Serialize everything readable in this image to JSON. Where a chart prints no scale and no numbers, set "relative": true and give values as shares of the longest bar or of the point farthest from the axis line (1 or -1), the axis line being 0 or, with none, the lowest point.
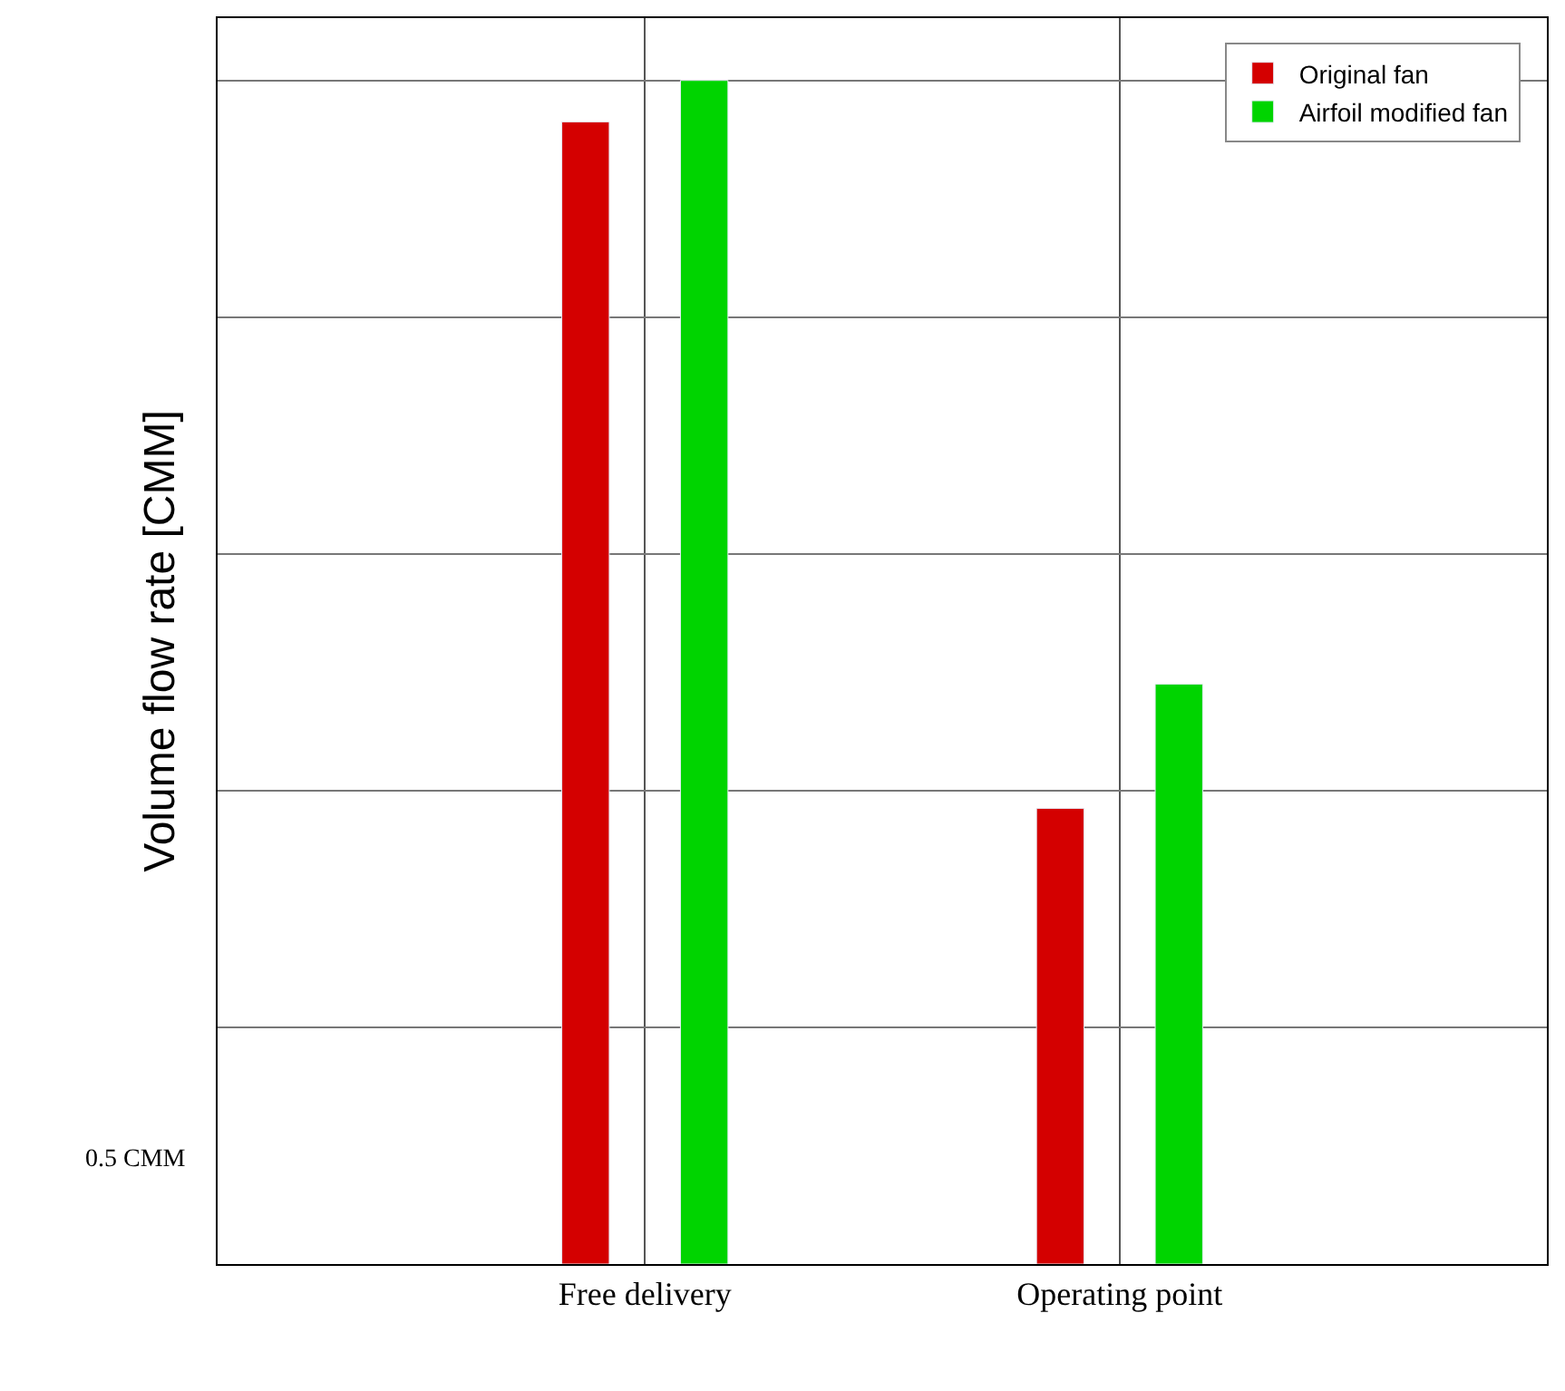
{
  "chart_data": {
    "type": "bar",
    "ylabel": "Volume flow rate [CMM]",
    "categories": [
      "Free delivery",
      "Operating point"
    ],
    "series": [
      {
        "name": "Original fan",
        "color": "#d40000",
        "values": [
          0.965,
          0.385
        ]
      },
      {
        "name": "Airfoil modified fan",
        "color": "#00d400",
        "values": [
          1,
          0.49
        ]
      }
    ],
    "relative": true,
    "grid": true,
    "legend": "top right",
    "annotations": [
      "0.5 CMM"
    ]
  }
}
